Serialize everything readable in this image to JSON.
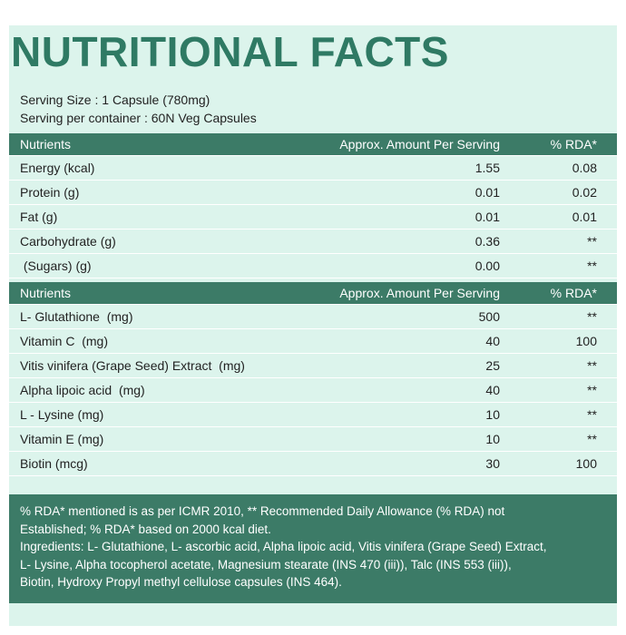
{
  "title": "NUTRITIONAL FACTS",
  "serving": [
    "Serving Size : 1 Capsule (780mg)",
    "Serving per container : 60N Veg Capsules"
  ],
  "tables": [
    {
      "header": [
        "Nutrients",
        "Approx. Amount Per Serving",
        "% RDA*"
      ],
      "rows": [
        [
          "Energy (kcal)",
          "1.55",
          "0.08"
        ],
        [
          "Protein (g)",
          "0.01",
          "0.02"
        ],
        [
          "Fat (g)",
          "0.01",
          "0.01"
        ],
        [
          "Carbohydrate (g)",
          "0.36",
          "**"
        ],
        [
          " (Sugars) (g)",
          "0.00",
          "**"
        ]
      ]
    },
    {
      "header": [
        "Nutrients",
        "Approx. Amount Per Serving",
        "% RDA*"
      ],
      "rows": [
        [
          "L- Glutathione  (mg)",
          "500",
          "**"
        ],
        [
          "Vitamin C  (mg)",
          "40",
          "100"
        ],
        [
          "Vitis vinifera (Grape Seed) Extract  (mg)",
          "25",
          "**"
        ],
        [
          "Alpha lipoic acid  (mg)",
          "40",
          "**"
        ],
        [
          "L - Lysine (mg)",
          "10",
          "**"
        ],
        [
          "Vitamin E (mg)",
          "10",
          "**"
        ],
        [
          "Biotin (mcg)",
          "30",
          "100"
        ]
      ]
    }
  ],
  "notes": [
    "% RDA* mentioned is as per ICMR 2010, ** Recommended Daily Allowance (% RDA) not",
    "Established; % RDA* based on 2000 kcal diet.",
    "Ingredients: L- Glutathione, L- ascorbic acid, Alpha lipoic acid, Vitis vinifera (Grape Seed) Extract,",
    "L- Lysine, Alpha tocopherol acetate, Magnesium stearate (INS 470 (iii)), Talc (INS 553 (iii)),",
    "Biotin, Hydroxy Propyl methyl cellulose capsules (INS 464)."
  ]
}
